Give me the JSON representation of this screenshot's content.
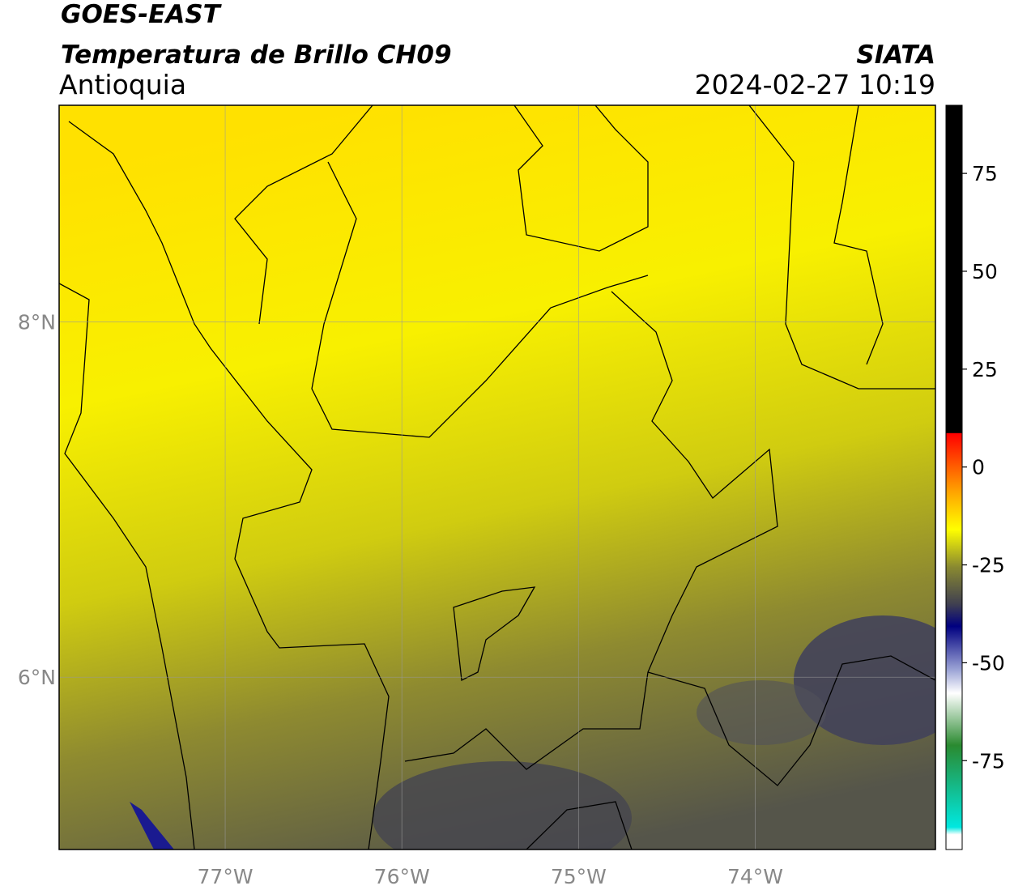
{
  "header": {
    "title": "GOES-EAST",
    "subtitle": "Temperatura de Brillo CH09",
    "region": "Antioquia",
    "source": "SIATA",
    "datetime": "2024-02-27 10:19"
  },
  "map": {
    "xlim": [
      -77.94,
      -72.98
    ],
    "ylim": [
      5.03,
      9.22
    ],
    "xticks": [
      {
        "value": -77,
        "label": "77°W"
      },
      {
        "value": -76,
        "label": "76°W"
      },
      {
        "value": -75,
        "label": "75°W"
      },
      {
        "value": -74,
        "label": "74°W"
      }
    ],
    "yticks": [
      {
        "value": 6,
        "label": "6°N"
      },
      {
        "value": 8,
        "label": "8°N"
      }
    ],
    "grid": true
  },
  "colorbar": {
    "lim": [
      -97.7,
      92.4
    ],
    "ticks": [
      75,
      50,
      25,
      0,
      -25,
      -50,
      -75
    ]
  }
}
